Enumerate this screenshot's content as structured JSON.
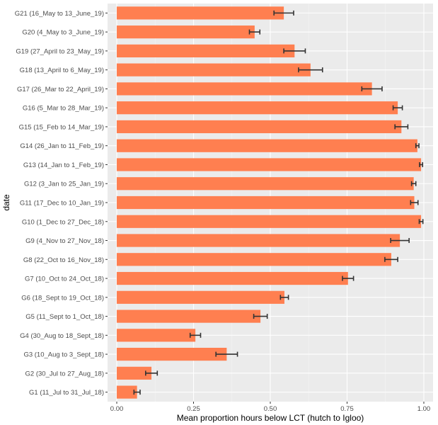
{
  "chart_data": {
    "type": "bar",
    "orientation": "horizontal",
    "title": "",
    "xlabel": "Mean proportion hours below LCT (hutch to Igloo)",
    "ylabel": "date",
    "xlim": [
      -0.03,
      1.03
    ],
    "xticks": [
      0,
      0.25,
      0.5,
      0.75,
      1
    ],
    "xtick_labels": [
      "0.00",
      "0.25",
      "0.50",
      "0.75",
      "1.00"
    ],
    "grid": true,
    "bar_color": "#FF7F50",
    "errorbar_color": "#333333",
    "panel_color": "#EBEBEB",
    "categories": [
      "G1 (11_Jul to 31_Jul_18)",
      "G2 (30_Jul to 27_Aug_18)",
      "G3 (10_Aug to 3_Sept_18)",
      "G4 (30_Aug to 18_Sept_18)",
      "G5 (11_Sept to 1_Oct_18)",
      "G6 (18_Sept to 19_Oct_18)",
      "G7 (10_Oct to 24_Oct_18)",
      "G8 (22_Oct to 16_Nov_18)",
      "G9 (4_Nov to 27_Nov_18)",
      "G10 (1_Dec to 27_Dec_18)",
      "G11 (17_Dec to 10_Jan_19)",
      "G12 (3_Jan to 25_Jan_19)",
      "G13 (14_Jan to 1_Feb_19)",
      "G14 (26_Jan to 11_Feb_19)",
      "G15 (15_Feb to 14_Mar_19)",
      "G16 (5_Mar to 28_Mar_19)",
      "G17 (26_Mar to 22_April_19)",
      "G18 (13_April to 6_May_19)",
      "G19 (27_April to 23_May_19)",
      "G20 (4_May to 3_June_19)",
      "G21 (16_May to 13_June_19)"
    ],
    "values": [
      0.066,
      0.113,
      0.358,
      0.256,
      0.468,
      0.546,
      0.753,
      0.894,
      0.922,
      0.991,
      0.969,
      0.967,
      0.991,
      0.979,
      0.927,
      0.915,
      0.831,
      0.631,
      0.579,
      0.449,
      0.544
    ],
    "errors": [
      0.01,
      0.019,
      0.035,
      0.017,
      0.022,
      0.013,
      0.018,
      0.021,
      0.03,
      0.006,
      0.012,
      0.007,
      0.005,
      0.005,
      0.021,
      0.015,
      0.033,
      0.039,
      0.035,
      0.017,
      0.032
    ]
  }
}
